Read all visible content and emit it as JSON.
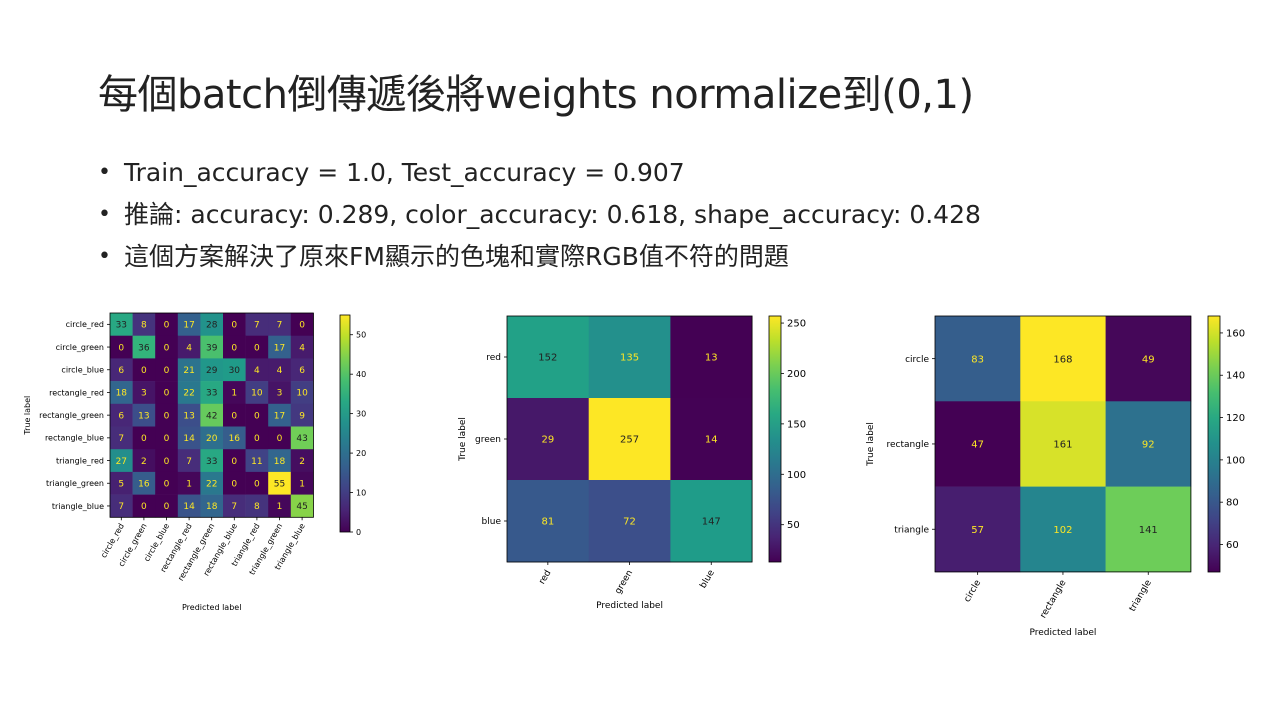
{
  "title": "每個batch倒傳遞後將weights normalize到(0,1)",
  "bullets": [
    "Train_accuracy = 1.0, Test_accuracy = 0.907",
    "推論: accuracy: 0.289, color_accuracy: 0.618, shape_accuracy: 0.428",
    "這個方案解決了原來FM顯示的色塊和實際RGB值不符的問題"
  ],
  "chart_data": [
    {
      "type": "heatmap",
      "colormap": "viridis",
      "xlabel": "Predicted label",
      "ylabel": "True label",
      "labels": [
        "circle_red",
        "circle_green",
        "circle_blue",
        "rectangle_red",
        "rectangle_green",
        "rectangle_blue",
        "triangle_red",
        "triangle_green",
        "triangle_blue"
      ],
      "matrix": [
        [
          33,
          8,
          0,
          17,
          28,
          0,
          7,
          7,
          0
        ],
        [
          0,
          36,
          0,
          4,
          39,
          0,
          0,
          17,
          4
        ],
        [
          6,
          0,
          0,
          21,
          29,
          30,
          4,
          4,
          6
        ],
        [
          18,
          3,
          0,
          22,
          33,
          1,
          10,
          3,
          10
        ],
        [
          6,
          13,
          0,
          13,
          42,
          0,
          0,
          17,
          9
        ],
        [
          7,
          0,
          0,
          14,
          20,
          16,
          0,
          0,
          43
        ],
        [
          27,
          2,
          0,
          7,
          33,
          0,
          11,
          18,
          2
        ],
        [
          5,
          16,
          0,
          1,
          22,
          0,
          0,
          55,
          1
        ],
        [
          7,
          0,
          0,
          14,
          18,
          7,
          8,
          1,
          45
        ]
      ],
      "vmin": 0,
      "vmax": 55,
      "colorbar_ticks": [
        0,
        10,
        20,
        30,
        40,
        50
      ]
    },
    {
      "type": "heatmap",
      "colormap": "viridis",
      "xlabel": "Predicted label",
      "ylabel": "True label",
      "labels": [
        "red",
        "green",
        "blue"
      ],
      "matrix": [
        [
          152,
          135,
          13
        ],
        [
          29,
          257,
          14
        ],
        [
          81,
          72,
          147
        ]
      ],
      "vmin": 13,
      "vmax": 257,
      "colorbar_ticks": [
        50,
        100,
        150,
        200,
        250
      ]
    },
    {
      "type": "heatmap",
      "colormap": "viridis",
      "xlabel": "Predicted label",
      "ylabel": "True label",
      "labels": [
        "circle",
        "rectangle",
        "triangle"
      ],
      "matrix": [
        [
          83,
          168,
          49
        ],
        [
          47,
          161,
          92
        ],
        [
          57,
          102,
          141
        ]
      ],
      "vmin": 47,
      "vmax": 168,
      "colorbar_ticks": [
        60,
        80,
        100,
        120,
        140,
        160
      ]
    }
  ]
}
